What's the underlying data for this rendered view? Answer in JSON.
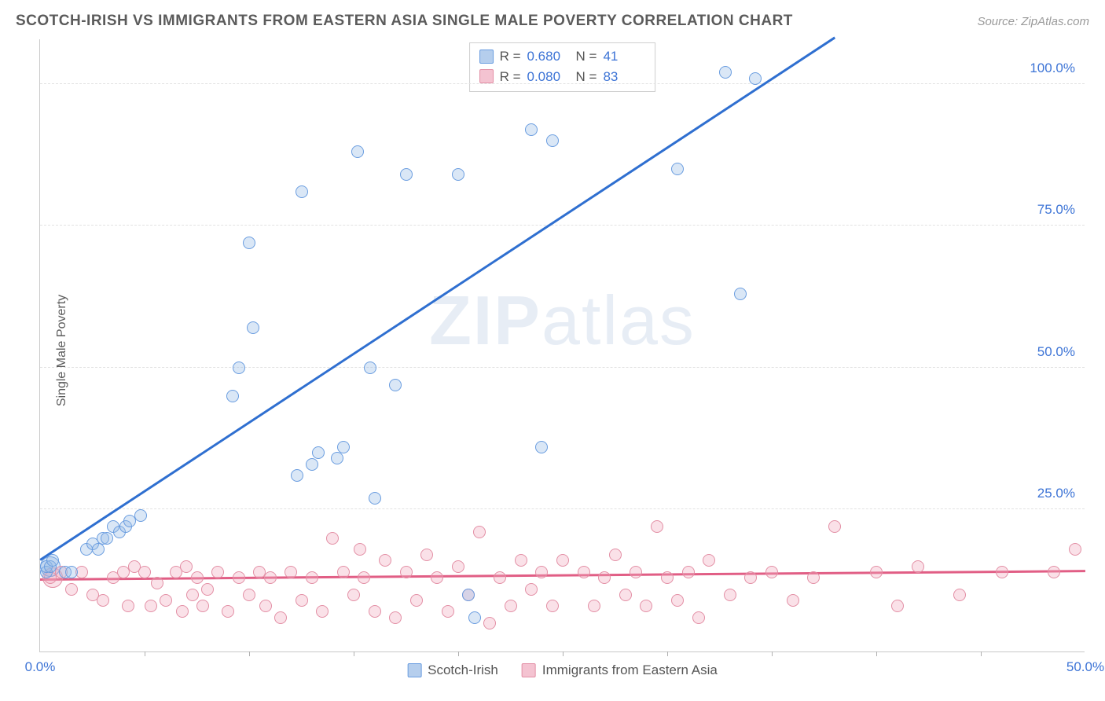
{
  "title": "SCOTCH-IRISH VS IMMIGRANTS FROM EASTERN ASIA SINGLE MALE POVERTY CORRELATION CHART",
  "source": "Source: ZipAtlas.com",
  "ylabel": "Single Male Poverty",
  "watermark_bold": "ZIP",
  "watermark_light": "atlas",
  "chart": {
    "type": "scatter",
    "xlim": [
      0,
      50
    ],
    "ylim": [
      0,
      108
    ],
    "x_ticks_minor": [
      5,
      10,
      15,
      20,
      25,
      30,
      35,
      40,
      45
    ],
    "x_ticks_labeled": [
      {
        "v": 0,
        "l": "0.0%"
      },
      {
        "v": 50,
        "l": "50.0%"
      }
    ],
    "y_ticks": [
      {
        "v": 25,
        "l": "25.0%"
      },
      {
        "v": 50,
        "l": "50.0%"
      },
      {
        "v": 75,
        "l": "75.0%"
      },
      {
        "v": 100,
        "l": "100.0%"
      }
    ],
    "background_color": "#ffffff",
    "grid_color": "#e2e2e2",
    "axis_color": "#c9c9c9",
    "tick_label_color": "#3d74d6",
    "label_color": "#5b5b5b",
    "label_fontsize": 16,
    "tick_fontsize": 17,
    "marker_size": 16,
    "marker_size_cluster": 26,
    "line_width": 2.5
  },
  "series_a": {
    "name": "Scotch-Irish",
    "color_stroke": "#6a9de0",
    "color_fill": "rgba(150,185,230,0.35)",
    "trend_color": "#2f6fd0",
    "R": "0.680",
    "N": "41",
    "trend": {
      "x1": 0,
      "y1": 16,
      "x2": 38,
      "y2": 108
    },
    "points": [
      [
        0.3,
        14
      ],
      [
        0.3,
        15
      ],
      [
        0.5,
        15
      ],
      [
        0.6,
        16
      ],
      [
        1.2,
        14
      ],
      [
        1.5,
        14
      ],
      [
        2.2,
        18
      ],
      [
        2.5,
        19
      ],
      [
        2.8,
        18
      ],
      [
        3.0,
        20
      ],
      [
        3.2,
        20
      ],
      [
        3.5,
        22
      ],
      [
        3.8,
        21
      ],
      [
        4.1,
        22
      ],
      [
        4.3,
        23
      ],
      [
        4.8,
        24
      ],
      [
        9.2,
        45
      ],
      [
        9.5,
        50
      ],
      [
        10.0,
        72
      ],
      [
        10.2,
        57
      ],
      [
        12.3,
        31
      ],
      [
        12.5,
        81
      ],
      [
        13.0,
        33
      ],
      [
        13.3,
        35
      ],
      [
        14.2,
        34
      ],
      [
        14.5,
        36
      ],
      [
        15.2,
        88
      ],
      [
        15.8,
        50
      ],
      [
        16.0,
        27
      ],
      [
        17.0,
        47
      ],
      [
        17.5,
        84
      ],
      [
        20.0,
        84
      ],
      [
        20.5,
        10
      ],
      [
        20.8,
        6
      ],
      [
        23.5,
        92
      ],
      [
        24.0,
        36
      ],
      [
        24.5,
        90
      ],
      [
        30.5,
        85
      ],
      [
        32.8,
        102
      ],
      [
        33.5,
        63
      ],
      [
        34.2,
        101
      ]
    ],
    "cluster": [
      [
        0.5,
        15
      ]
    ]
  },
  "series_b": {
    "name": "Immigrants from Eastern Asia",
    "color_stroke": "#e38fa5",
    "color_fill": "rgba(240,170,190,0.35)",
    "trend_color": "#e15e85",
    "R": "0.080",
    "N": "83",
    "trend": {
      "x1": 0,
      "y1": 12.5,
      "x2": 50,
      "y2": 14
    },
    "points": [
      [
        0.5,
        13
      ],
      [
        1.0,
        14
      ],
      [
        1.5,
        11
      ],
      [
        2.0,
        14
      ],
      [
        2.5,
        10
      ],
      [
        3.0,
        9
      ],
      [
        3.5,
        13
      ],
      [
        4.0,
        14
      ],
      [
        4.2,
        8
      ],
      [
        4.5,
        15
      ],
      [
        5.0,
        14
      ],
      [
        5.3,
        8
      ],
      [
        5.6,
        12
      ],
      [
        6.0,
        9
      ],
      [
        6.5,
        14
      ],
      [
        6.8,
        7
      ],
      [
        7.0,
        15
      ],
      [
        7.3,
        10
      ],
      [
        7.5,
        13
      ],
      [
        7.8,
        8
      ],
      [
        8.0,
        11
      ],
      [
        8.5,
        14
      ],
      [
        9.0,
        7
      ],
      [
        9.5,
        13
      ],
      [
        10.0,
        10
      ],
      [
        10.5,
        14
      ],
      [
        10.8,
        8
      ],
      [
        11.0,
        13
      ],
      [
        11.5,
        6
      ],
      [
        12.0,
        14
      ],
      [
        12.5,
        9
      ],
      [
        13.0,
        13
      ],
      [
        13.5,
        7
      ],
      [
        14.0,
        20
      ],
      [
        14.5,
        14
      ],
      [
        15.0,
        10
      ],
      [
        15.3,
        18
      ],
      [
        15.5,
        13
      ],
      [
        16.0,
        7
      ],
      [
        16.5,
        16
      ],
      [
        17.0,
        6
      ],
      [
        17.5,
        14
      ],
      [
        18.0,
        9
      ],
      [
        18.5,
        17
      ],
      [
        19.0,
        13
      ],
      [
        19.5,
        7
      ],
      [
        20.0,
        15
      ],
      [
        20.5,
        10
      ],
      [
        21.0,
        21
      ],
      [
        21.5,
        5
      ],
      [
        22.0,
        13
      ],
      [
        22.5,
        8
      ],
      [
        23.0,
        16
      ],
      [
        23.5,
        11
      ],
      [
        24.0,
        14
      ],
      [
        24.5,
        8
      ],
      [
        25.0,
        16
      ],
      [
        26.0,
        14
      ],
      [
        26.5,
        8
      ],
      [
        27.0,
        13
      ],
      [
        27.5,
        17
      ],
      [
        28.0,
        10
      ],
      [
        28.5,
        14
      ],
      [
        29.0,
        8
      ],
      [
        29.5,
        22
      ],
      [
        30.0,
        13
      ],
      [
        30.5,
        9
      ],
      [
        31.0,
        14
      ],
      [
        31.5,
        6
      ],
      [
        32.0,
        16
      ],
      [
        33.0,
        10
      ],
      [
        34.0,
        13
      ],
      [
        35.0,
        14
      ],
      [
        36.0,
        9
      ],
      [
        37.0,
        13
      ],
      [
        38.0,
        22
      ],
      [
        40.0,
        14
      ],
      [
        41.0,
        8
      ],
      [
        42.0,
        15
      ],
      [
        44.0,
        10
      ],
      [
        46.0,
        14
      ],
      [
        48.5,
        14
      ],
      [
        49.5,
        18
      ]
    ],
    "cluster": [
      [
        0.6,
        13
      ]
    ]
  },
  "legend_a": "Scotch-Irish",
  "legend_b": "Immigrants from Eastern Asia",
  "stats_labels": {
    "R": "R =",
    "N": "N ="
  }
}
